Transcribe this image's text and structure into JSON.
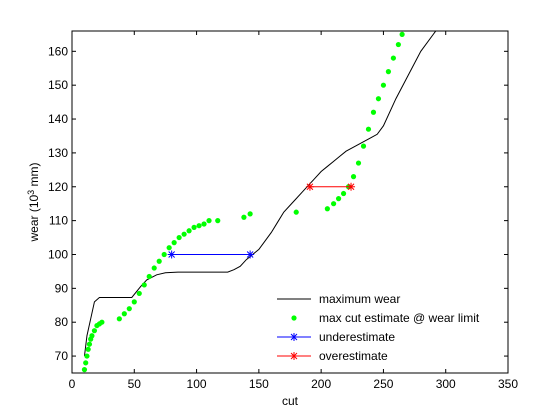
{
  "chart_data": {
    "type": "line",
    "title": "",
    "xlabel": "cut",
    "ylabel_main": "wear (10",
    "ylabel_sup": "3",
    "ylabel_tail": " mm)",
    "xlim": [
      0,
      350
    ],
    "ylim": [
      65,
      166
    ],
    "xticks": [
      0,
      50,
      100,
      150,
      200,
      250,
      300,
      350
    ],
    "yticks": [
      70,
      80,
      90,
      100,
      110,
      120,
      130,
      140,
      150,
      160
    ],
    "grid": false,
    "legend_position": "bottom-right",
    "colors": {
      "max_wear": "#000000",
      "estimate": "#00ff00",
      "under": "#0000ff",
      "over": "#ff0000"
    },
    "series": [
      {
        "name": "maximum wear",
        "style": "line",
        "x": [
          10,
          12,
          15,
          18,
          22,
          26,
          30,
          35,
          40,
          45,
          48,
          55,
          60,
          68,
          75,
          85,
          95,
          105,
          115,
          125,
          130,
          135,
          140,
          145,
          150,
          155,
          160,
          165,
          170,
          175,
          180,
          185,
          190,
          195,
          200,
          205,
          210,
          215,
          220,
          225,
          230,
          235,
          240,
          245,
          250,
          260,
          270,
          280,
          290,
          300
        ],
        "y": [
          70,
          76,
          81,
          86,
          87.3,
          87.3,
          87.3,
          87.3,
          87.3,
          87.3,
          87.3,
          90.5,
          92.5,
          94,
          94.6,
          94.8,
          94.8,
          94.8,
          94.8,
          94.8,
          95.5,
          96.5,
          98.5,
          100,
          101.5,
          104,
          106.5,
          109.5,
          112.5,
          114.5,
          116.5,
          118.5,
          120.5,
          122.5,
          124.5,
          126,
          127.5,
          129,
          130.5,
          131.5,
          132.5,
          133.5,
          134.5,
          135.5,
          138,
          146,
          153,
          160,
          165,
          170
        ]
      },
      {
        "name": "max cut estimate @ wear limit",
        "style": "markers",
        "x": [
          10,
          11,
          12,
          13,
          14,
          15,
          16,
          18,
          20,
          22,
          24,
          38,
          42,
          46,
          50,
          54,
          58,
          62,
          66,
          70,
          74,
          78,
          82,
          86,
          90,
          94,
          98,
          102,
          106,
          110,
          117,
          138,
          143,
          180,
          205,
          210,
          214,
          218,
          222,
          226,
          230,
          234,
          238,
          242,
          246,
          250,
          254,
          258,
          262,
          265
        ],
        "y": [
          66,
          68,
          70,
          72,
          73.5,
          75,
          76,
          77.5,
          79,
          79.5,
          80,
          81,
          82.5,
          84,
          86,
          88.5,
          91,
          93.5,
          96,
          98,
          100,
          102,
          103.5,
          105,
          106,
          107,
          108,
          108.5,
          109,
          110,
          110,
          111,
          112,
          112.5,
          113.5,
          115,
          116.5,
          118,
          120,
          123,
          127,
          132,
          137,
          142,
          146,
          150,
          154,
          158,
          162,
          165
        ]
      },
      {
        "name": "underestimate",
        "style": "line-marker",
        "x": [
          80,
          143
        ],
        "y": [
          100,
          100
        ]
      },
      {
        "name": "overestimate",
        "style": "line-marker",
        "x": [
          191,
          224
        ],
        "y": [
          120,
          120
        ]
      }
    ]
  }
}
